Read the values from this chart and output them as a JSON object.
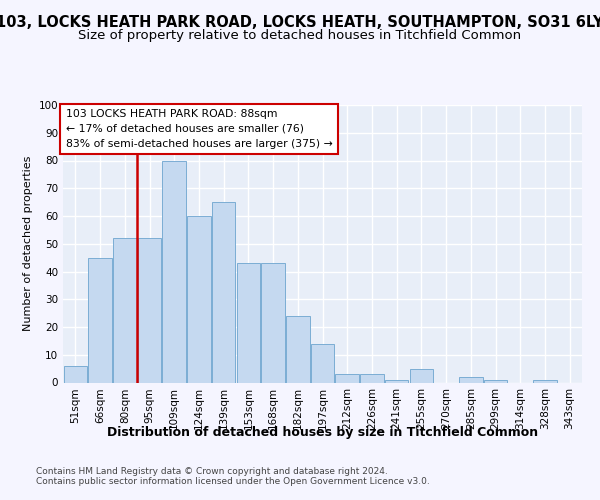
{
  "title1": "103, LOCKS HEATH PARK ROAD, LOCKS HEATH, SOUTHAMPTON, SO31 6LY",
  "title2": "Size of property relative to detached houses in Titchfield Common",
  "xlabel": "Distribution of detached houses by size in Titchfield Common",
  "ylabel": "Number of detached properties",
  "footer1": "Contains HM Land Registry data © Crown copyright and database right 2024.",
  "footer2": "Contains public sector information licensed under the Open Government Licence v3.0.",
  "categories": [
    "51sqm",
    "66sqm",
    "80sqm",
    "95sqm",
    "109sqm",
    "124sqm",
    "139sqm",
    "153sqm",
    "168sqm",
    "182sqm",
    "197sqm",
    "212sqm",
    "226sqm",
    "241sqm",
    "255sqm",
    "270sqm",
    "285sqm",
    "299sqm",
    "314sqm",
    "328sqm",
    "343sqm"
  ],
  "values": [
    6,
    45,
    52,
    52,
    80,
    60,
    65,
    43,
    43,
    24,
    14,
    3,
    3,
    1,
    5,
    0,
    2,
    1,
    0,
    1,
    0
  ],
  "bar_color": "#c5d9f0",
  "bar_edge_color": "#7badd4",
  "red_line_color": "#cc0000",
  "red_line_x": 2.5,
  "annotation_label": "103 LOCKS HEATH PARK ROAD: 88sqm",
  "annotation_line1": "← 17% of detached houses are smaller (76)",
  "annotation_line2": "83% of semi-detached houses are larger (375) →",
  "annotation_box_edge": "#cc0000",
  "ylim": [
    0,
    100
  ],
  "bg_color": "#f5f5ff",
  "plot_bg_color": "#e8eef8",
  "grid_color": "#ffffff",
  "title1_fontsize": 10.5,
  "title2_fontsize": 9.5,
  "xlabel_fontsize": 9,
  "ylabel_fontsize": 8,
  "tick_fontsize": 7.5,
  "footer_fontsize": 6.5
}
